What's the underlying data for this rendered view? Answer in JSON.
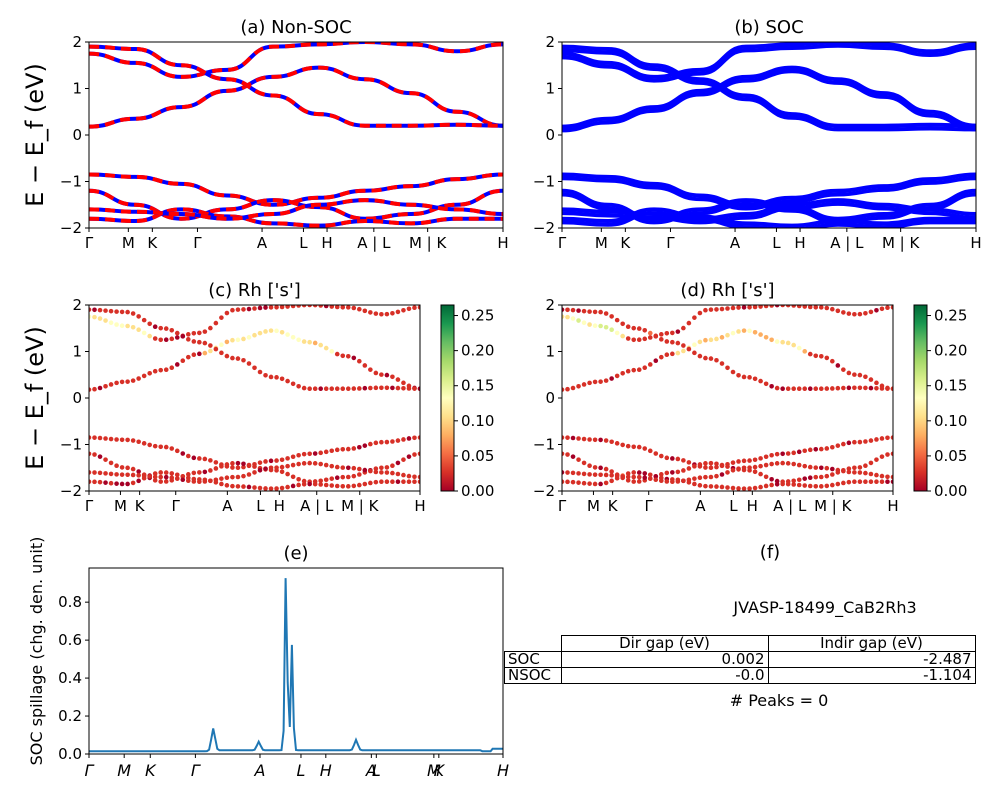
{
  "chart_data": [
    {
      "type": "line",
      "panel": "a",
      "title": "(a) Non-SOC",
      "ylabel": "E − E_f (eV)",
      "ylim": [
        -2,
        2
      ],
      "yticks": [
        "2",
        "1",
        "0",
        "−1",
        "−2"
      ],
      "xticks": [
        "Γ",
        "M",
        "K",
        "Γ",
        "A",
        "L",
        "H",
        "A | L",
        "M | K",
        "H"
      ],
      "series": [
        {
          "values": [
            0.18,
            0.35,
            0.6,
            0.95,
            1.25,
            1.45,
            1.2,
            0.9,
            0.5,
            0.2
          ]
        },
        {
          "values": [
            1.75,
            1.55,
            1.25,
            1.4,
            1.9,
            1.95,
            2.0,
            1.95,
            1.8,
            1.95
          ]
        },
        {
          "values": [
            1.9,
            1.85,
            1.5,
            1.2,
            0.85,
            0.45,
            0.2,
            0.2,
            0.22,
            0.2
          ]
        },
        {
          "values": [
            -0.85,
            -0.9,
            -1.05,
            -1.3,
            -1.5,
            -1.35,
            -1.2,
            -1.1,
            -0.95,
            -0.85
          ]
        },
        {
          "values": [
            -1.2,
            -1.5,
            -1.8,
            -1.6,
            -1.4,
            -1.55,
            -1.8,
            -1.7,
            -1.5,
            -1.2
          ]
        },
        {
          "values": [
            -1.8,
            -1.85,
            -1.6,
            -1.75,
            -1.9,
            -1.95,
            -1.85,
            -1.9,
            -1.8,
            -1.8
          ]
        },
        {
          "values": [
            -1.6,
            -1.65,
            -1.7,
            -1.8,
            -1.7,
            -1.5,
            -1.4,
            -1.5,
            -1.6,
            -1.7
          ]
        }
      ]
    },
    {
      "type": "line",
      "panel": "b",
      "title": "(b) SOC",
      "ylim": [
        -2,
        2
      ],
      "yticks": [
        "2",
        "1",
        "0",
        "−1",
        "−2"
      ],
      "xticks": [
        "Γ",
        "M",
        "K",
        "Γ",
        "A",
        "L",
        "H",
        "A | L",
        "M | K",
        "H"
      ]
    },
    {
      "type": "scatter",
      "panel": "c",
      "title": "(c)  Rh ['s']",
      "ylabel": "E − E_f (eV)",
      "ylim": [
        -2,
        2
      ],
      "yticks": [
        "2",
        "1",
        "0",
        "−1",
        "−2"
      ],
      "xticks": [
        "Γ",
        "M",
        "K",
        "Γ",
        "A",
        "L",
        "H",
        "A | L",
        "M | K",
        "H"
      ],
      "colorbar_ticks": [
        "0.25",
        "0.20",
        "0.15",
        "0.10",
        "0.05",
        "0.00"
      ],
      "colorbar_range": [
        0,
        0.265
      ]
    },
    {
      "type": "scatter",
      "panel": "d",
      "title": "(d) Rh ['s']",
      "ylim": [
        -2,
        2
      ],
      "yticks": [
        "2",
        "1",
        "0",
        "−1",
        "−2"
      ],
      "xticks": [
        "Γ",
        "M",
        "K",
        "Γ",
        "A",
        "L",
        "H",
        "A | L",
        "M | K",
        "H"
      ],
      "colorbar_ticks": [
        "0.25",
        "0.20",
        "0.15",
        "0.10",
        "0.05",
        "0.00"
      ],
      "colorbar_range": [
        0,
        0.265
      ]
    },
    {
      "type": "line",
      "panel": "e",
      "title": "(e)",
      "ylabel": "SOC spillage (chg. den. unit)",
      "ylim": [
        0,
        0.98
      ],
      "yticks": [
        "0.0",
        "0.2",
        "0.4",
        "0.6",
        "0.8"
      ],
      "xticks": [
        "Γ",
        "M",
        "K",
        "Γ",
        "A",
        "L",
        "H",
        "A",
        "L",
        "M",
        "K",
        "H"
      ],
      "peaks": [
        {
          "k": 0.3,
          "value": 0.135
        },
        {
          "k": 0.41,
          "value": 0.06
        },
        {
          "k": 0.476,
          "value": 0.98
        },
        {
          "k": 0.49,
          "value": 0.57
        },
        {
          "k": 0.645,
          "value": 0.07
        }
      ],
      "baseline": 0.015
    }
  ],
  "panel_f": {
    "title": "(f)",
    "material_id": "JVASP-18499_CaB2Rh3",
    "table": {
      "headers": [
        "Dir gap (eV)",
        "Indir gap (eV)"
      ],
      "rows": [
        {
          "label": "SOC",
          "dir": "0.002",
          "indir": "-2.487"
        },
        {
          "label": "NSOC",
          "dir": "-0.0",
          "indir": "-1.104"
        }
      ]
    },
    "peaks_text": "# Peaks = 0"
  },
  "colors": {
    "nonsoc_red": "#ff0000",
    "nonsoc_blue": "#0000ff",
    "soc_blue": "#0000ff",
    "spillage_line": "#1f77b4",
    "colormap": [
      "#a50026",
      "#d73027",
      "#f46d43",
      "#fdae61",
      "#fee08b",
      "#ffffbf",
      "#d9ef8b",
      "#a6d96a",
      "#66bd63",
      "#1a9850",
      "#006837"
    ]
  }
}
